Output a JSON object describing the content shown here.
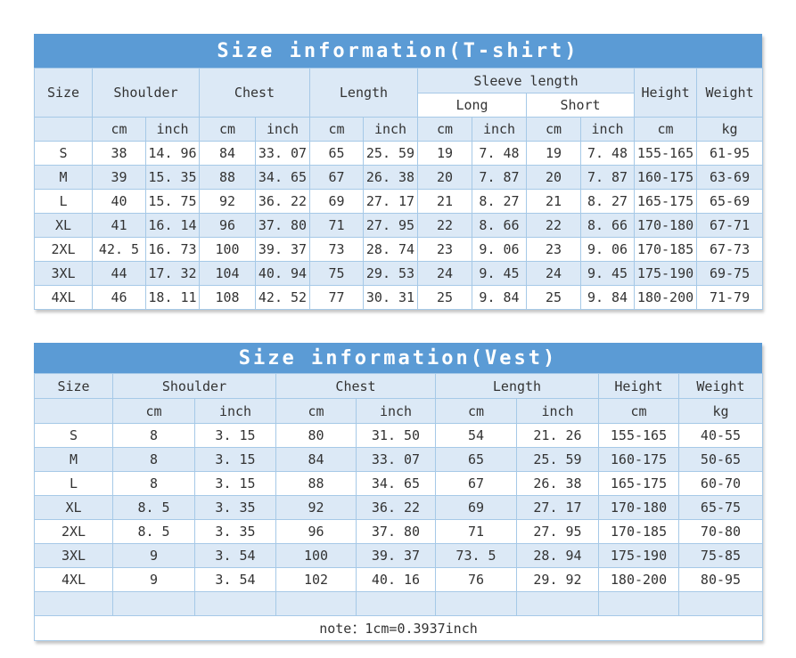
{
  "colors": {
    "title_bg": "#5B9BD5",
    "title_text": "#FFFFFF",
    "stripe_bg": "#DCE9F6",
    "row_bg": "#FFFFFF",
    "border": "#A6C9E7",
    "text": "#333333"
  },
  "tshirt_table": {
    "title": "Size information(T-shirt)",
    "headers": {
      "size": "Size",
      "shoulder": "Shoulder",
      "chest": "Chest",
      "length": "Length",
      "sleeve_length": "Sleeve length",
      "long": "Long",
      "short": "Short",
      "height": "Height",
      "weight": "Weight"
    },
    "unit_row": [
      "",
      "cm",
      "inch",
      "cm",
      "inch",
      "cm",
      "inch",
      "cm",
      "inch",
      "cm",
      "inch",
      "cm",
      "kg"
    ],
    "rows": [
      [
        "S",
        "38",
        "14. 96",
        "84",
        "33. 07",
        "65",
        "25. 59",
        "19",
        "7. 48",
        "19",
        "7. 48",
        "155-165",
        "61-95"
      ],
      [
        "M",
        "39",
        "15. 35",
        "88",
        "34. 65",
        "67",
        "26. 38",
        "20",
        "7. 87",
        "20",
        "7. 87",
        "160-175",
        "63-69"
      ],
      [
        "L",
        "40",
        "15. 75",
        "92",
        "36. 22",
        "69",
        "27. 17",
        "21",
        "8. 27",
        "21",
        "8. 27",
        "165-175",
        "65-69"
      ],
      [
        "XL",
        "41",
        "16. 14",
        "96",
        "37. 80",
        "71",
        "27. 95",
        "22",
        "8. 66",
        "22",
        "8. 66",
        "170-180",
        "67-71"
      ],
      [
        "2XL",
        "42. 5",
        "16. 73",
        "100",
        "39. 37",
        "73",
        "28. 74",
        "23",
        "9. 06",
        "23",
        "9. 06",
        "170-185",
        "67-73"
      ],
      [
        "3XL",
        "44",
        "17. 32",
        "104",
        "40. 94",
        "75",
        "29. 53",
        "24",
        "9. 45",
        "24",
        "9. 45",
        "175-190",
        "69-75"
      ],
      [
        "4XL",
        "46",
        "18. 11",
        "108",
        "42. 52",
        "77",
        "30. 31",
        "25",
        "9. 84",
        "25",
        "9. 84",
        "180-200",
        "71-79"
      ]
    ]
  },
  "vest_table": {
    "title": "Size information(Vest)",
    "headers": {
      "size": "Size",
      "shoulder": "Shoulder",
      "chest": "Chest",
      "length": "Length",
      "height": "Height",
      "weight": "Weight"
    },
    "unit_row": [
      "",
      "cm",
      "inch",
      "cm",
      "inch",
      "cm",
      "inch",
      "cm",
      "kg"
    ],
    "rows": [
      [
        "S",
        "8",
        "3. 15",
        "80",
        "31. 50",
        "54",
        "21. 26",
        "155-165",
        "40-55"
      ],
      [
        "M",
        "8",
        "3. 15",
        "84",
        "33. 07",
        "65",
        "25. 59",
        "160-175",
        "50-65"
      ],
      [
        "L",
        "8",
        "3. 15",
        "88",
        "34. 65",
        "67",
        "26. 38",
        "165-175",
        "60-70"
      ],
      [
        "XL",
        "8. 5",
        "3. 35",
        "92",
        "36. 22",
        "69",
        "27. 17",
        "170-180",
        "65-75"
      ],
      [
        "2XL",
        "8. 5",
        "3. 35",
        "96",
        "37. 80",
        "71",
        "27. 95",
        "170-185",
        "70-80"
      ],
      [
        "3XL",
        "9",
        "3. 54",
        "100",
        "39. 37",
        "73. 5",
        "28. 94",
        "175-190",
        "75-85"
      ],
      [
        "4XL",
        "9",
        "3. 54",
        "102",
        "40. 16",
        "76",
        "29. 92",
        "180-200",
        "80-95"
      ]
    ],
    "empty_row": [
      "",
      "",
      "",
      "",
      "",
      "",
      "",
      "",
      ""
    ],
    "note": "note：1cm=0.3937inch"
  }
}
